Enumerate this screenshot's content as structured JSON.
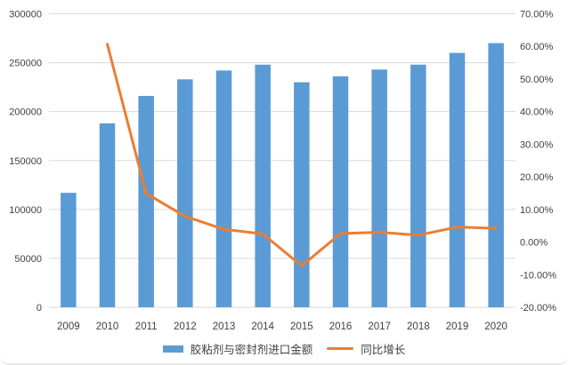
{
  "chart_data": {
    "type": "combo-bar-line",
    "categories": [
      "2009",
      "2010",
      "2011",
      "2012",
      "2013",
      "2014",
      "2015",
      "2016",
      "2017",
      "2018",
      "2019",
      "2020"
    ],
    "series": [
      {
        "name": "胶粘剂与密封剂进口金额",
        "type": "bar",
        "axis": "left",
        "color": "#5B9BD5",
        "values": [
          117000,
          188000,
          216000,
          233000,
          242000,
          248000,
          230000,
          236000,
          243000,
          248000,
          260000,
          270000
        ]
      },
      {
        "name": "同比增长",
        "type": "line",
        "axis": "right",
        "color": "#ED7D31",
        "values": [
          null,
          60.7,
          14.9,
          7.9,
          3.9,
          2.5,
          -7.3,
          2.6,
          3.0,
          2.1,
          4.6,
          4.2
        ]
      }
    ],
    "y_left": {
      "min": 0,
      "max": 300000,
      "step": 50000,
      "tick_labels": [
        "0",
        "50000",
        "100000",
        "150000",
        "200000",
        "250000",
        "300000"
      ]
    },
    "y_right": {
      "min": -20,
      "max": 70,
      "step": 10,
      "tick_labels": [
        "-20.00%",
        "-10.00%",
        "0.00%",
        "10.00%",
        "20.00%",
        "30.00%",
        "40.00%",
        "50.00%",
        "60.00%",
        "70.00%"
      ]
    },
    "title": "",
    "grid": "horizontal gridlines at left-axis intervals",
    "legend_position": "bottom",
    "colors": {
      "gridline": "#D9D9D9",
      "axis_text": "#404040",
      "background": "#ffffff"
    }
  }
}
